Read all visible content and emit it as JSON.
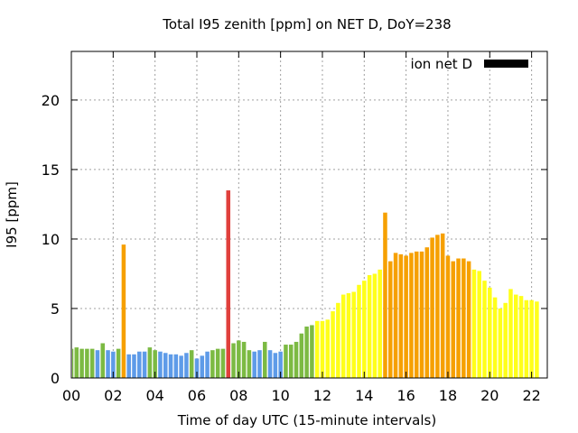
{
  "chart_data": {
    "type": "bar",
    "title": "Total I95 zenith [ppm] on NET D, DoY=238",
    "xlabel": "Time of day UTC (15-minute intervals)",
    "ylabel": "I95 [ppm]",
    "xlim": [
      0,
      22.75
    ],
    "ylim": [
      0,
      23.5
    ],
    "x_ticks": [
      0,
      2,
      4,
      6,
      8,
      10,
      12,
      14,
      16,
      18,
      20,
      22
    ],
    "x_tick_labels": [
      "00",
      "02",
      "04",
      "06",
      "08",
      "10",
      "12",
      "14",
      "16",
      "18",
      "20",
      "22"
    ],
    "y_ticks": [
      0,
      5,
      10,
      15,
      20
    ],
    "y_tick_labels": [
      "0",
      "5",
      "10",
      "15",
      "20"
    ],
    "grid": true,
    "bar_step_hours": 0.25,
    "legend": {
      "label": "ion net D",
      "color": "#000000",
      "position": "top-right"
    },
    "category_colors": {
      "blue": "#5e9be8",
      "green": "#7cba43",
      "yellow": "#ffff1a",
      "orange": "#f6a000",
      "red": "#e0403c"
    },
    "values": [
      2.1,
      2.2,
      2.1,
      2.1,
      2.1,
      2.0,
      2.5,
      2.0,
      1.9,
      2.1,
      9.6,
      1.7,
      1.7,
      1.9,
      1.9,
      2.2,
      2.0,
      1.9,
      1.8,
      1.7,
      1.7,
      1.6,
      1.8,
      2.0,
      1.4,
      1.6,
      1.9,
      2.0,
      2.1,
      2.1,
      13.5,
      2.5,
      2.7,
      2.6,
      2.0,
      1.9,
      2.0,
      2.6,
      2.0,
      1.8,
      1.9,
      2.4,
      2.4,
      2.6,
      3.2,
      3.7,
      3.8,
      4.1,
      4.1,
      4.2,
      4.8,
      5.4,
      6.0,
      6.1,
      6.2,
      6.7,
      7.0,
      7.4,
      7.5,
      7.8,
      11.9,
      8.4,
      9.0,
      8.9,
      8.8,
      9.0,
      9.1,
      9.1,
      9.4,
      10.1,
      10.3,
      10.4,
      8.8,
      8.4,
      8.6,
      8.6,
      8.4,
      7.8,
      7.7,
      7.0,
      6.5,
      5.8,
      5.0,
      5.4,
      6.4,
      6.0,
      5.9,
      5.6,
      5.6,
      5.5
    ],
    "colors": [
      "green",
      "green",
      "green",
      "green",
      "green",
      "blue",
      "green",
      "blue",
      "blue",
      "green",
      "orange",
      "blue",
      "blue",
      "blue",
      "blue",
      "green",
      "green",
      "blue",
      "blue",
      "blue",
      "blue",
      "blue",
      "blue",
      "green",
      "blue",
      "blue",
      "blue",
      "green",
      "green",
      "green",
      "red",
      "green",
      "green",
      "green",
      "green",
      "blue",
      "blue",
      "green",
      "blue",
      "blue",
      "blue",
      "green",
      "green",
      "green",
      "green",
      "green",
      "green",
      "yellow",
      "yellow",
      "yellow",
      "yellow",
      "yellow",
      "yellow",
      "yellow",
      "yellow",
      "yellow",
      "yellow",
      "yellow",
      "yellow",
      "yellow",
      "orange",
      "orange",
      "orange",
      "orange",
      "orange",
      "orange",
      "orange",
      "orange",
      "orange",
      "orange",
      "orange",
      "orange",
      "orange",
      "orange",
      "orange",
      "orange",
      "orange",
      "yellow",
      "yellow",
      "yellow",
      "yellow",
      "yellow",
      "yellow",
      "yellow",
      "yellow",
      "yellow",
      "yellow",
      "yellow",
      "yellow",
      "yellow"
    ]
  }
}
